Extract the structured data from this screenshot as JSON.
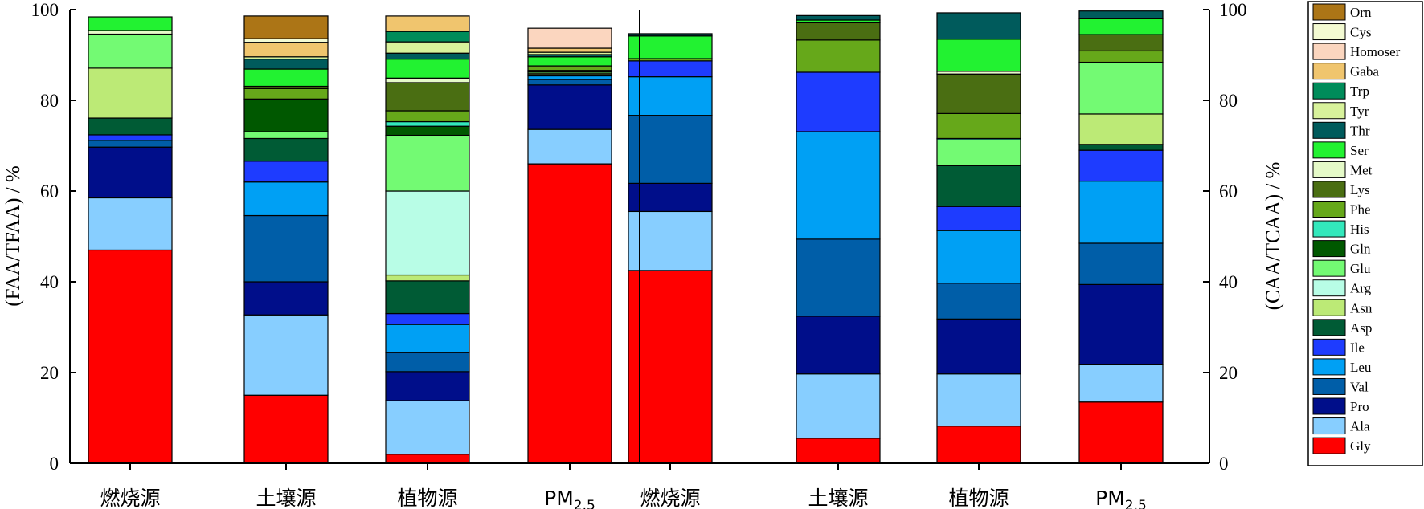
{
  "chart_data": {
    "type": "bar",
    "stacked": true,
    "yaxis_left": {
      "label": "(FAA/TFAA) / %",
      "ylim": [
        0,
        100
      ],
      "ticks": [
        0,
        20,
        40,
        60,
        80,
        100
      ]
    },
    "yaxis_right": {
      "label": "(CAA/TCAA) / %",
      "ylim": [
        0,
        100
      ],
      "ticks": [
        0,
        20,
        40,
        60,
        80,
        100
      ]
    },
    "categories": [
      "燃烧源",
      "土壤源",
      "植物源",
      "PM2.5",
      "燃烧源",
      "土壤源",
      "植物源",
      "PM2.5"
    ],
    "category_parts": [
      {
        "main": "燃烧源",
        "sub": ""
      },
      {
        "main": "土壤源",
        "sub": ""
      },
      {
        "main": "植物源",
        "sub": ""
      },
      {
        "main": "PM",
        "sub": "2.5"
      },
      {
        "main": "燃烧源",
        "sub": ""
      },
      {
        "main": "土壤源",
        "sub": ""
      },
      {
        "main": "植物源",
        "sub": ""
      },
      {
        "main": "PM",
        "sub": "2.5"
      }
    ],
    "panels": [
      "FAA",
      "FAA",
      "FAA",
      "FAA",
      "CAA",
      "CAA",
      "CAA",
      "CAA"
    ],
    "legend_position": "right",
    "series": [
      {
        "name": "Gly",
        "color": "#FF0000",
        "values": [
          47,
          15,
          2,
          66,
          42.5,
          5.5,
          8.2,
          13.5
        ]
      },
      {
        "name": "Ala",
        "color": "#87CEFF",
        "values": [
          11.5,
          17.7,
          11.8,
          7.6,
          13,
          14.2,
          11.5,
          8.2
        ]
      },
      {
        "name": "Pro",
        "color": "#000E8A",
        "values": [
          11.2,
          7.3,
          6.4,
          9.8,
          6.2,
          12.7,
          12.1,
          17.7
        ]
      },
      {
        "name": "Val",
        "color": "#005EA8",
        "values": [
          1.5,
          14.6,
          4.2,
          1.2,
          15,
          17,
          7.9,
          9.1
        ]
      },
      {
        "name": "Leu",
        "color": "#00A0F4",
        "values": [
          0,
          7.4,
          6.2,
          0.8,
          8.5,
          23.7,
          11.6,
          13.7
        ]
      },
      {
        "name": "Ile",
        "color": "#1E3CFF",
        "values": [
          1.2,
          4.6,
          2.4,
          0,
          3.5,
          13.1,
          5.3,
          6.8
        ]
      },
      {
        "name": "Asp",
        "color": "#005B35",
        "values": [
          3.7,
          5,
          7.2,
          0.3,
          0,
          0,
          9,
          1.3
        ]
      },
      {
        "name": "Asn",
        "color": "#BCEA76",
        "values": [
          11,
          0,
          1.3,
          0.3,
          0,
          0,
          0,
          6.7
        ]
      },
      {
        "name": "Arg",
        "color": "#B8FDE6",
        "values": [
          0,
          0,
          18.5,
          0,
          0,
          0,
          0,
          0
        ]
      },
      {
        "name": "Glu",
        "color": "#73FA73",
        "values": [
          7.5,
          1.5,
          12.3,
          0.3,
          0,
          0,
          5.7,
          11.4
        ]
      },
      {
        "name": "Gln",
        "color": "#005800",
        "values": [
          0,
          7.2,
          2,
          0.3,
          0,
          0,
          0,
          0
        ]
      },
      {
        "name": "His",
        "color": "#33E8BC",
        "values": [
          0,
          0,
          1,
          0,
          0,
          0,
          0.3,
          0
        ]
      },
      {
        "name": "Phe",
        "color": "#66A81A",
        "values": [
          0,
          2.3,
          2.4,
          1,
          0.5,
          7.1,
          5.5,
          2.5
        ]
      },
      {
        "name": "Lys",
        "color": "#4A6E12",
        "values": [
          0,
          0.5,
          6.2,
          0,
          0,
          3.8,
          8.7,
          3.6
        ]
      },
      {
        "name": "Met",
        "color": "#E5FAC8",
        "values": [
          0.8,
          0,
          1,
          0,
          0,
          0,
          0.6,
          0
        ]
      },
      {
        "name": "Ser",
        "color": "#22F231",
        "values": [
          3,
          3.8,
          4.2,
          2,
          5,
          0.6,
          7.1,
          3.5
        ]
      },
      {
        "name": "Thr",
        "color": "#005B5C",
        "values": [
          0,
          2.2,
          1.3,
          0.5,
          0.5,
          1,
          5.8,
          1.7
        ]
      },
      {
        "name": "Tyr",
        "color": "#D8F29B",
        "values": [
          0,
          0.5,
          2.5,
          0.5,
          0,
          0,
          0,
          0
        ]
      },
      {
        "name": "Trp",
        "color": "#008C5A",
        "values": [
          0,
          0,
          2.3,
          0,
          0,
          0,
          0,
          0
        ]
      },
      {
        "name": "Gaba",
        "color": "#F0C56E",
        "values": [
          0,
          3.2,
          3.4,
          0.9,
          0,
          0,
          0,
          0
        ]
      },
      {
        "name": "Homoser",
        "color": "#FBD6BF",
        "values": [
          0,
          0,
          0,
          4.4,
          0,
          0,
          0,
          0
        ]
      },
      {
        "name": "Cys",
        "color": "#F3FAD2",
        "values": [
          0,
          0.8,
          0,
          0,
          0,
          0,
          0,
          0
        ]
      },
      {
        "name": "Orn",
        "color": "#AC7516",
        "values": [
          0,
          5,
          0,
          0,
          0,
          0,
          0,
          0
        ]
      }
    ]
  }
}
